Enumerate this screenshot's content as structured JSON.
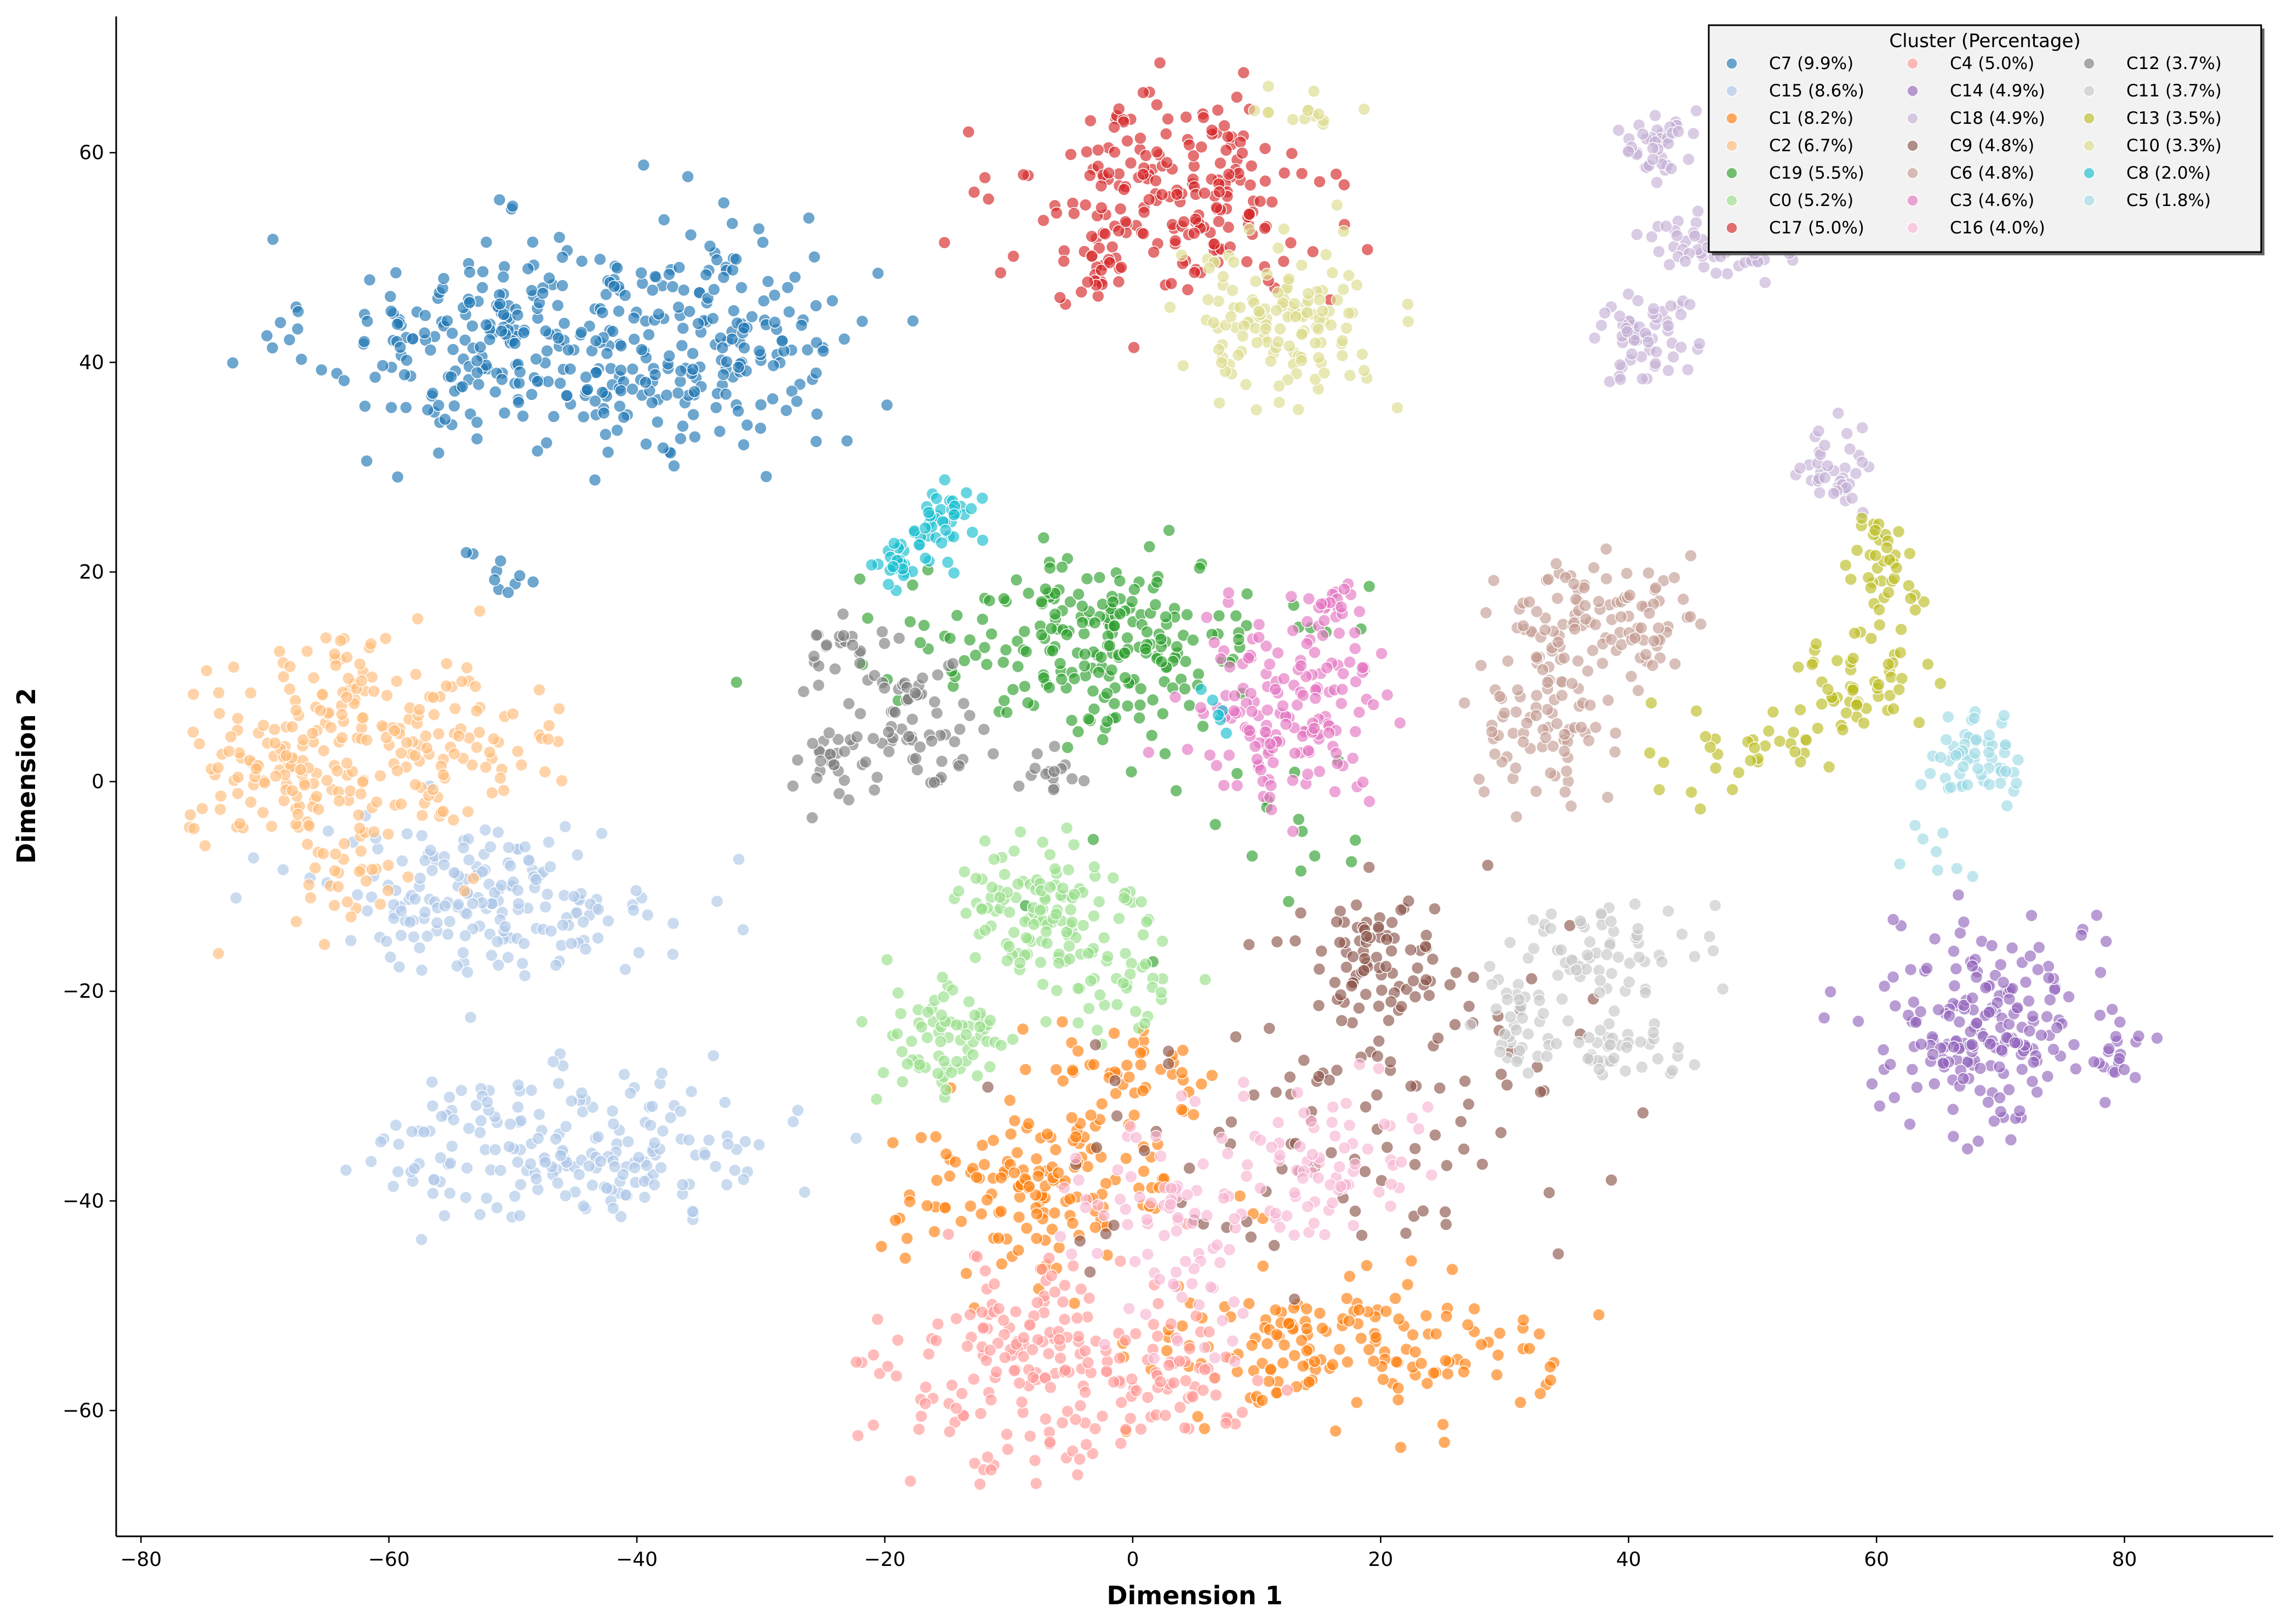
{
  "chart_data": {
    "type": "scatter",
    "xlabel": "Dimension 1",
    "ylabel": "Dimension 2",
    "xlim": [
      -82,
      92
    ],
    "ylim": [
      -72,
      73
    ],
    "xticks": [
      -80,
      -60,
      -40,
      -20,
      0,
      20,
      40,
      60,
      80
    ],
    "yticks": [
      -60,
      -40,
      -20,
      0,
      20,
      40,
      60
    ],
    "grid": false,
    "legend": {
      "title": "Cluster (Percentage)",
      "placement": "top-right",
      "columns": 3,
      "entries": [
        {
          "name": "C7 (9.9%)",
          "color": "#1f77b4"
        },
        {
          "name": "C15 (8.6%)",
          "color": "#aec7e8"
        },
        {
          "name": "C1 (8.2%)",
          "color": "#ff7f0e"
        },
        {
          "name": "C2 (6.7%)",
          "color": "#ffbb78"
        },
        {
          "name": "C19 (5.5%)",
          "color": "#2ca02c"
        },
        {
          "name": "C0 (5.2%)",
          "color": "#98df8a"
        },
        {
          "name": "C17 (5.0%)",
          "color": "#d62728"
        },
        {
          "name": "C4 (5.0%)",
          "color": "#ff9896"
        },
        {
          "name": "C14 (4.9%)",
          "color": "#9467bd"
        },
        {
          "name": "C18 (4.9%)",
          "color": "#c5b0d5"
        },
        {
          "name": "C9 (4.8%)",
          "color": "#8c564b"
        },
        {
          "name": "C6 (4.8%)",
          "color": "#c49c94"
        },
        {
          "name": "C3 (4.6%)",
          "color": "#e377c2"
        },
        {
          "name": "C16 (4.0%)",
          "color": "#f7b6d2"
        },
        {
          "name": "C12 (3.7%)",
          "color": "#7f7f7f"
        },
        {
          "name": "C11 (3.7%)",
          "color": "#c7c7c7"
        },
        {
          "name": "C13 (3.5%)",
          "color": "#bcbd22"
        },
        {
          "name": "C10 (3.3%)",
          "color": "#dbdb8d"
        },
        {
          "name": "C8 (2.0%)",
          "color": "#17becf"
        },
        {
          "name": "C5 (1.8%)",
          "color": "#9edae5"
        }
      ]
    },
    "series": [
      {
        "name": "C7",
        "color": "#1f77b4",
        "clusters": [
          {
            "cx": -50,
            "cy": 42,
            "sx": 8,
            "sy": 5,
            "n": 260
          },
          {
            "cx": -33,
            "cy": 42,
            "sx": 6,
            "sy": 6,
            "n": 170
          },
          {
            "cx": -51,
            "cy": 19,
            "sx": 1.5,
            "sy": 1.5,
            "n": 10
          }
        ]
      },
      {
        "name": "C15",
        "color": "#aec7e8",
        "clusters": [
          {
            "cx": -52,
            "cy": -11,
            "sx": 7,
            "sy": 3.5,
            "n": 190
          },
          {
            "cx": -45,
            "cy": -35,
            "sx": 8,
            "sy": 3.5,
            "n": 200
          }
        ]
      },
      {
        "name": "C1",
        "color": "#ff7f0e",
        "clusters": [
          {
            "cx": -7,
            "cy": -39,
            "sx": 6,
            "sy": 4,
            "n": 160
          },
          {
            "cx": 17,
            "cy": -54,
            "sx": 8,
            "sy": 3.5,
            "n": 160
          },
          {
            "cx": 0,
            "cy": -27,
            "sx": 4,
            "sy": 2,
            "n": 40
          }
        ]
      },
      {
        "name": "C2",
        "color": "#ffbb78",
        "clusters": [
          {
            "cx": -68,
            "cy": 2,
            "sx": 4,
            "sy": 4,
            "n": 130
          },
          {
            "cx": -56,
            "cy": 3,
            "sx": 5,
            "sy": 4,
            "n": 110
          },
          {
            "cx": -64,
            "cy": 11,
            "sx": 2.5,
            "sy": 2,
            "n": 25
          },
          {
            "cx": -62,
            "cy": -8,
            "sx": 3,
            "sy": 3,
            "n": 35
          }
        ]
      },
      {
        "name": "C19",
        "color": "#2ca02c",
        "clusters": [
          {
            "cx": -3,
            "cy": 13,
            "sx": 7,
            "sy": 4,
            "n": 230
          },
          {
            "cx": 5,
            "cy": -4,
            "sx": 10,
            "sy": 6,
            "n": 20
          }
        ]
      },
      {
        "name": "C0",
        "color": "#98df8a",
        "clusters": [
          {
            "cx": -7,
            "cy": -13,
            "sx": 4,
            "sy": 4,
            "n": 130
          },
          {
            "cx": -15,
            "cy": -25,
            "sx": 3,
            "sy": 3,
            "n": 70
          },
          {
            "cx": -2,
            "cy": -20,
            "sx": 3,
            "sy": 2.5,
            "n": 30
          }
        ]
      },
      {
        "name": "C17",
        "color": "#d62728",
        "clusters": [
          {
            "cx": 3,
            "cy": 56,
            "sx": 6,
            "sy": 4.5,
            "n": 210
          },
          {
            "cx": -3,
            "cy": 48,
            "sx": 1.5,
            "sy": 1.5,
            "n": 20
          }
        ]
      },
      {
        "name": "C4",
        "color": "#ff9896",
        "clusters": [
          {
            "cx": -7,
            "cy": -56,
            "sx": 6,
            "sy": 5,
            "n": 190
          },
          {
            "cx": 3,
            "cy": -57,
            "sx": 3,
            "sy": 2.5,
            "n": 40
          }
        ]
      },
      {
        "name": "C14",
        "color": "#9467bd",
        "clusters": [
          {
            "cx": 69,
            "cy": -23,
            "sx": 4,
            "sy": 5,
            "n": 200
          },
          {
            "cx": 79,
            "cy": -26,
            "sx": 1.5,
            "sy": 2,
            "n": 20
          }
        ]
      },
      {
        "name": "C18",
        "color": "#c5b0d5",
        "clusters": [
          {
            "cx": 41,
            "cy": 43,
            "sx": 1.8,
            "sy": 2.5,
            "n": 60
          },
          {
            "cx": 47,
            "cy": 51,
            "sx": 3,
            "sy": 2,
            "n": 60
          },
          {
            "cx": 42,
            "cy": 61,
            "sx": 1.5,
            "sy": 1.5,
            "n": 40
          },
          {
            "cx": 57,
            "cy": 30,
            "sx": 1.5,
            "sy": 2,
            "n": 40
          }
        ]
      },
      {
        "name": "C9",
        "color": "#8c564b",
        "clusters": [
          {
            "cx": 20,
            "cy": -17,
            "sx": 3,
            "sy": 3.5,
            "n": 80
          },
          {
            "cx": 16,
            "cy": -32,
            "sx": 10,
            "sy": 8,
            "n": 110
          }
        ]
      },
      {
        "name": "C6",
        "color": "#c49c94",
        "clusters": [
          {
            "cx": 37,
            "cy": 15,
            "sx": 4,
            "sy": 3,
            "n": 120
          },
          {
            "cx": 33,
            "cy": 5,
            "sx": 2.5,
            "sy": 3,
            "n": 70
          }
        ]
      },
      {
        "name": "C3",
        "color": "#e377c2",
        "clusters": [
          {
            "cx": 13,
            "cy": 7,
            "sx": 4,
            "sy": 4.5,
            "n": 170
          },
          {
            "cx": 17,
            "cy": 17,
            "sx": 1.5,
            "sy": 0.8,
            "n": 14
          }
        ]
      },
      {
        "name": "C16",
        "color": "#f7b6d2",
        "clusters": [
          {
            "cx": 3,
            "cy": -43,
            "sx": 4,
            "sy": 5,
            "n": 80
          },
          {
            "cx": 15,
            "cy": -36,
            "sx": 4,
            "sy": 4,
            "n": 80
          }
        ]
      },
      {
        "name": "C12",
        "color": "#7f7f7f",
        "clusters": [
          {
            "cx": -18,
            "cy": 6,
            "sx": 3,
            "sy": 3,
            "n": 70
          },
          {
            "cx": -24,
            "cy": 2,
            "sx": 1.5,
            "sy": 2,
            "n": 25
          },
          {
            "cx": -24,
            "cy": 13,
            "sx": 1.5,
            "sy": 1.5,
            "n": 20
          },
          {
            "cx": -7,
            "cy": 1,
            "sx": 1.2,
            "sy": 1,
            "n": 15
          }
        ]
      },
      {
        "name": "C11",
        "color": "#c7c7c7",
        "clusters": [
          {
            "cx": 38,
            "cy": -16,
            "sx": 4,
            "sy": 2.5,
            "n": 70
          },
          {
            "cx": 40,
            "cy": -26,
            "sx": 3,
            "sy": 1.5,
            "n": 40
          },
          {
            "cx": 31,
            "cy": -23,
            "sx": 2,
            "sy": 2,
            "n": 30
          }
        ]
      },
      {
        "name": "C13",
        "color": "#bcbd22",
        "clusters": [
          {
            "cx": 61,
            "cy": 21,
            "sx": 1.5,
            "sy": 2.5,
            "n": 40
          },
          {
            "cx": 59,
            "cy": 9,
            "sx": 3,
            "sy": 2,
            "n": 50
          },
          {
            "cx": 52,
            "cy": 4,
            "sx": 3,
            "sy": 1.5,
            "n": 20
          },
          {
            "cx": 45,
            "cy": 2,
            "sx": 2.5,
            "sy": 2,
            "n": 15
          }
        ]
      },
      {
        "name": "C10",
        "color": "#dbdb8d",
        "clusters": [
          {
            "cx": 12,
            "cy": 44,
            "sx": 4,
            "sy": 4,
            "n": 140
          },
          {
            "cx": 14,
            "cy": 64,
            "sx": 2,
            "sy": 1,
            "n": 14
          }
        ]
      },
      {
        "name": "C8",
        "color": "#17becf",
        "clusters": [
          {
            "cx": -15,
            "cy": 25,
            "sx": 1.5,
            "sy": 1.5,
            "n": 40
          },
          {
            "cx": -19,
            "cy": 21,
            "sx": 1.5,
            "sy": 1.2,
            "n": 25
          },
          {
            "cx": 7,
            "cy": 7,
            "sx": 1,
            "sy": 1,
            "n": 6
          }
        ]
      },
      {
        "name": "C5",
        "color": "#9edae5",
        "clusters": [
          {
            "cx": 68,
            "cy": 2,
            "sx": 2,
            "sy": 1.8,
            "n": 60
          },
          {
            "cx": 65,
            "cy": -7,
            "sx": 1.5,
            "sy": 1.5,
            "n": 8
          }
        ]
      }
    ]
  }
}
